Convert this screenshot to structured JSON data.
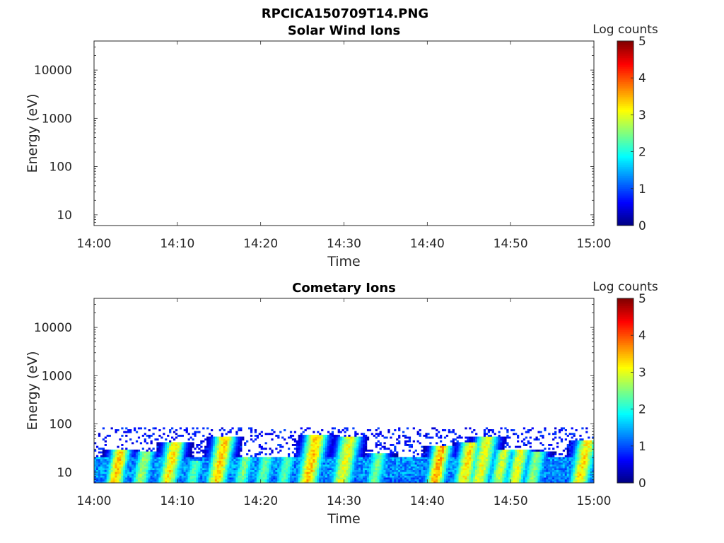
{
  "figure_title": "RPCICA150709T14.PNG",
  "chart_data": [
    {
      "type": "heatmap",
      "title": "Solar Wind Ions",
      "xlabel": "Time",
      "ylabel": "Energy (eV)",
      "x_ticks": [
        "14:00",
        "14:10",
        "14:20",
        "14:30",
        "14:40",
        "14:50",
        "15:00"
      ],
      "y_ticks": [
        "10",
        "100",
        "1000",
        "10000"
      ],
      "yscale": "log",
      "xlim": [
        "14:00",
        "15:00"
      ],
      "ylim": [
        6,
        40000
      ],
      "colorbar": {
        "label": "Log counts",
        "ticks": [
          "0",
          "1",
          "2",
          "3",
          "4",
          "5"
        ],
        "range": [
          0,
          5
        ],
        "colormap": "jet"
      },
      "bursts": []
    },
    {
      "type": "heatmap",
      "title": "Cometary Ions",
      "xlabel": "Time",
      "ylabel": "Energy (eV)",
      "x_ticks": [
        "14:00",
        "14:10",
        "14:20",
        "14:30",
        "14:40",
        "14:50",
        "15:00"
      ],
      "y_ticks": [
        "10",
        "100",
        "1000",
        "10000"
      ],
      "yscale": "log",
      "xlim": [
        "14:00",
        "15:00"
      ],
      "ylim": [
        6,
        40000
      ],
      "colorbar": {
        "label": "Log counts",
        "ticks": [
          "0",
          "1",
          "2",
          "3",
          "4",
          "5"
        ],
        "range": [
          0,
          5
        ],
        "colormap": "jet"
      },
      "background": {
        "energy_range_eV": [
          6,
          20
        ],
        "log_counts": 1.6
      },
      "bursts": [
        {
          "time": "14:03",
          "peak_energy_eV": 22,
          "log_counts": 3.6
        },
        {
          "time": "14:06",
          "peak_energy_eV": 20,
          "log_counts": 2.8
        },
        {
          "time": "14:09.5",
          "peak_energy_eV": 30,
          "log_counts": 3.4
        },
        {
          "time": "14:12",
          "peak_energy_eV": 13,
          "log_counts": 2.4
        },
        {
          "time": "14:15.5",
          "peak_energy_eV": 40,
          "log_counts": 3.5
        },
        {
          "time": "14:18",
          "peak_energy_eV": 16,
          "log_counts": 2.6
        },
        {
          "time": "14:20.5",
          "peak_energy_eV": 16,
          "log_counts": 2.5
        },
        {
          "time": "14:23",
          "peak_energy_eV": 15,
          "log_counts": 2.4
        },
        {
          "time": "14:26.5",
          "peak_energy_eV": 45,
          "log_counts": 3.6
        },
        {
          "time": "14:30.5",
          "peak_energy_eV": 40,
          "log_counts": 3.2
        },
        {
          "time": "14:34",
          "peak_energy_eV": 18,
          "log_counts": 2.6
        },
        {
          "time": "14:41.5",
          "peak_energy_eV": 25,
          "log_counts": 3.7
        },
        {
          "time": "14:45",
          "peak_energy_eV": 30,
          "log_counts": 3.4
        },
        {
          "time": "14:47",
          "peak_energy_eV": 40,
          "log_counts": 3.2
        },
        {
          "time": "14:49",
          "peak_energy_eV": 22,
          "log_counts": 3.0
        },
        {
          "time": "14:51",
          "peak_energy_eV": 22,
          "log_counts": 3.2
        },
        {
          "time": "14:53",
          "peak_energy_eV": 20,
          "log_counts": 2.7
        },
        {
          "time": "14:59",
          "peak_energy_eV": 35,
          "log_counts": 3.4
        }
      ]
    }
  ]
}
